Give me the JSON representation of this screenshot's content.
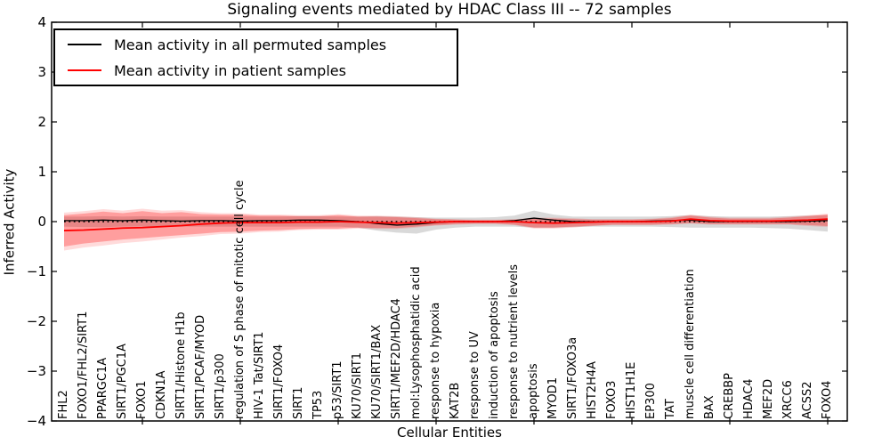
{
  "chart_data": {
    "type": "line",
    "title": "Signaling events mediated by HDAC Class III -- 72 samples",
    "xlabel": "Cellular Entities",
    "ylabel": "Inferred Activity",
    "ylim": [
      -4,
      4
    ],
    "yticks": [
      4,
      3,
      2,
      1,
      0,
      -1,
      -2,
      -3,
      -4
    ],
    "grid": false,
    "legend_position": "upper-left",
    "categories": [
      "FHL2",
      "FOXO1/FHL2/SIRT1",
      "PPARGC1A",
      "SIRT1/PGC1A",
      "FOXO1",
      "CDKN1A",
      "SIRT1/Histone H1b",
      "SIRT1/PCAF/MYOD",
      "SIRT1/p300",
      "regulation of S phase of mitotic cell cycle",
      "HIV-1 Tat/SIRT1",
      "SIRT1/FOXO4",
      "SIRT1",
      "TP53",
      "p53/SIRT1",
      "KU70/SIRT1",
      "KU70/SIRT1/BAX",
      "SIRT1/MEF2D/HDAC4",
      "mol:Lysophosphatidic acid",
      "response to hypoxia",
      "KAT2B",
      "response to UV",
      "induction of apoptosis",
      "response to nutrient levels",
      "apoptosis",
      "MYOD1",
      "SIRT1/FOXO3a",
      "HIST2H4A",
      "FOXO3",
      "HIST1H1E",
      "EP300",
      "TAT",
      "muscle cell differentiation",
      "BAX",
      "CREBBP",
      "HDAC4",
      "MEF2D",
      "XRCC6",
      "ACSS2",
      "FOXO4"
    ],
    "major_tick_indices": [
      4,
      9,
      14,
      19,
      24,
      29,
      34,
      39
    ],
    "series": [
      {
        "name": "Mean activity in all permuted samples",
        "color": "#000000",
        "values": [
          0.02,
          0.02,
          0.03,
          0.02,
          0.03,
          0.02,
          0.01,
          0.02,
          0.02,
          0.01,
          0.02,
          0.02,
          0.03,
          0.03,
          0.02,
          0.0,
          -0.04,
          -0.07,
          -0.05,
          -0.02,
          0.0,
          0.0,
          0.0,
          0.02,
          0.07,
          0.03,
          0.0,
          0.0,
          0.0,
          0.0,
          0.01,
          0.02,
          0.03,
          0.0,
          0.0,
          0.0,
          0.0,
          0.0,
          0.01,
          0.02
        ]
      },
      {
        "name": "Mean activity in patient samples",
        "color": "#ff0000",
        "values": [
          -0.18,
          -0.17,
          -0.15,
          -0.13,
          -0.12,
          -0.1,
          -0.08,
          -0.05,
          -0.03,
          -0.02,
          -0.02,
          -0.02,
          -0.01,
          -0.01,
          0.0,
          -0.01,
          -0.02,
          -0.03,
          -0.02,
          -0.01,
          0.0,
          0.0,
          0.0,
          0.0,
          -0.02,
          -0.03,
          -0.02,
          -0.01,
          0.0,
          0.0,
          0.0,
          0.01,
          0.05,
          0.02,
          0.01,
          0.01,
          0.01,
          0.02,
          0.03,
          0.05
        ]
      }
    ],
    "bands": [
      {
        "name": "permuted-confidence-band",
        "color": "rgba(128,128,128,0.30)",
        "upper": [
          0.1,
          0.1,
          0.11,
          0.1,
          0.11,
          0.1,
          0.1,
          0.1,
          0.1,
          0.1,
          0.1,
          0.1,
          0.11,
          0.11,
          0.1,
          0.1,
          0.11,
          0.1,
          0.09,
          0.08,
          0.08,
          0.08,
          0.09,
          0.12,
          0.22,
          0.14,
          0.1,
          0.1,
          0.1,
          0.1,
          0.1,
          0.11,
          0.13,
          0.11,
          0.1,
          0.1,
          0.1,
          0.11,
          0.12,
          0.13
        ],
        "lower": [
          -0.1,
          -0.11,
          -0.11,
          -0.1,
          -0.1,
          -0.1,
          -0.1,
          -0.1,
          -0.1,
          -0.1,
          -0.1,
          -0.1,
          -0.1,
          -0.1,
          -0.1,
          -0.12,
          -0.18,
          -0.22,
          -0.24,
          -0.16,
          -0.12,
          -0.1,
          -0.1,
          -0.1,
          -0.12,
          -0.12,
          -0.11,
          -0.1,
          -0.1,
          -0.1,
          -0.1,
          -0.11,
          -0.12,
          -0.12,
          -0.12,
          -0.12,
          -0.13,
          -0.14,
          -0.17,
          -0.2
        ]
      },
      {
        "name": "patient-confidence-band-outer",
        "color": "rgba(255,0,0,0.14)",
        "upper": [
          0.18,
          0.21,
          0.25,
          0.22,
          0.26,
          0.22,
          0.23,
          0.19,
          0.17,
          0.17,
          0.14,
          0.14,
          0.13,
          0.13,
          0.15,
          0.12,
          0.12,
          0.11,
          0.09,
          0.06,
          0.05,
          0.04,
          0.04,
          0.05,
          0.08,
          0.08,
          0.07,
          0.05,
          0.05,
          0.05,
          0.06,
          0.09,
          0.14,
          0.1,
          0.08,
          0.08,
          0.08,
          0.1,
          0.13,
          0.16
        ],
        "lower": [
          -0.58,
          -0.52,
          -0.48,
          -0.43,
          -0.4,
          -0.36,
          -0.32,
          -0.29,
          -0.25,
          -0.24,
          -0.21,
          -0.2,
          -0.17,
          -0.16,
          -0.16,
          -0.14,
          -0.15,
          -0.15,
          -0.12,
          -0.08,
          -0.06,
          -0.05,
          -0.05,
          -0.07,
          -0.14,
          -0.14,
          -0.12,
          -0.09,
          -0.07,
          -0.07,
          -0.07,
          -0.06,
          -0.04,
          -0.06,
          -0.06,
          -0.06,
          -0.06,
          -0.06,
          -0.09,
          -0.11
        ]
      },
      {
        "name": "patient-confidence-band",
        "color": "rgba(255,0,0,0.28)",
        "upper": [
          0.13,
          0.16,
          0.2,
          0.17,
          0.21,
          0.17,
          0.19,
          0.15,
          0.14,
          0.14,
          0.12,
          0.12,
          0.11,
          0.11,
          0.13,
          0.1,
          0.1,
          0.09,
          0.07,
          0.05,
          0.04,
          0.03,
          0.03,
          0.04,
          0.06,
          0.06,
          0.05,
          0.04,
          0.04,
          0.04,
          0.05,
          0.07,
          0.12,
          0.08,
          0.06,
          0.06,
          0.06,
          0.08,
          0.11,
          0.14
        ],
        "lower": [
          -0.5,
          -0.44,
          -0.4,
          -0.36,
          -0.33,
          -0.3,
          -0.27,
          -0.24,
          -0.21,
          -0.2,
          -0.18,
          -0.17,
          -0.15,
          -0.14,
          -0.14,
          -0.12,
          -0.13,
          -0.13,
          -0.1,
          -0.07,
          -0.05,
          -0.04,
          -0.04,
          -0.06,
          -0.12,
          -0.12,
          -0.1,
          -0.08,
          -0.06,
          -0.06,
          -0.06,
          -0.05,
          -0.03,
          -0.05,
          -0.05,
          -0.05,
          -0.05,
          -0.05,
          -0.07,
          -0.09
        ]
      }
    ],
    "zero_line": {
      "style": "dotted",
      "color": "#000000"
    }
  }
}
